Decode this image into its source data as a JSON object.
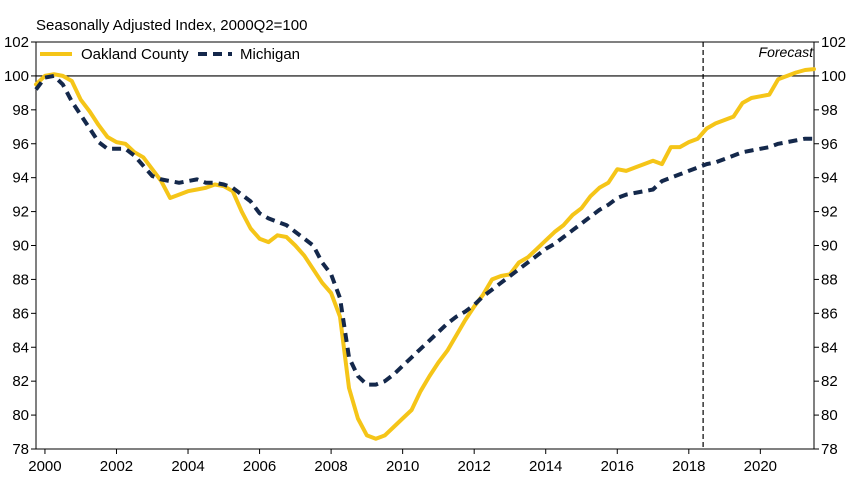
{
  "chart_data": {
    "type": "line",
    "title": "Seasonally Adjusted Index, 2000Q2=100",
    "xlabel": "",
    "ylabel": "",
    "xlim": [
      1999.75,
      2021.5
    ],
    "ylim": [
      78,
      102
    ],
    "x_ticks": [
      "2000",
      "2002",
      "2004",
      "2006",
      "2008",
      "2010",
      "2012",
      "2014",
      "2016",
      "2018",
      "2020"
    ],
    "y_ticks": [
      "78",
      "80",
      "82",
      "84",
      "86",
      "88",
      "90",
      "92",
      "94",
      "96",
      "98",
      "100",
      "102"
    ],
    "grid": false,
    "legend": "top-left",
    "reference_line_y": 100,
    "forecast_start_x": 2018.4,
    "annotation": "Forecast",
    "colors": {
      "oakland": "#F5C518",
      "michigan": "#14284B"
    },
    "series": [
      {
        "name": "Oakland County",
        "style": "solid",
        "x": [
          1999.75,
          2000.0,
          2000.25,
          2000.5,
          2000.75,
          2001.0,
          2001.25,
          2001.5,
          2001.75,
          2002.0,
          2002.25,
          2002.5,
          2002.75,
          2003.0,
          2003.25,
          2003.5,
          2003.75,
          2004.0,
          2004.25,
          2004.5,
          2004.75,
          2005.0,
          2005.25,
          2005.5,
          2005.75,
          2006.0,
          2006.25,
          2006.5,
          2006.75,
          2007.0,
          2007.25,
          2007.5,
          2007.75,
          2008.0,
          2008.25,
          2008.5,
          2008.75,
          2009.0,
          2009.25,
          2009.5,
          2009.75,
          2010.0,
          2010.25,
          2010.5,
          2010.75,
          2011.0,
          2011.25,
          2011.5,
          2011.75,
          2012.0,
          2012.25,
          2012.5,
          2012.75,
          2013.0,
          2013.25,
          2013.5,
          2013.75,
          2014.0,
          2014.25,
          2014.5,
          2014.75,
          2015.0,
          2015.25,
          2015.5,
          2015.75,
          2016.0,
          2016.25,
          2016.5,
          2016.75,
          2017.0,
          2017.25,
          2017.5,
          2017.75,
          2018.0,
          2018.25,
          2018.5,
          2018.75,
          2019.0,
          2019.25,
          2019.5,
          2019.75,
          2020.0,
          2020.25,
          2020.5,
          2020.75,
          2021.0,
          2021.25,
          2021.5
        ],
        "y": [
          99.5,
          100.0,
          100.1,
          100.0,
          99.7,
          98.6,
          97.9,
          97.1,
          96.4,
          96.1,
          96.0,
          95.5,
          95.2,
          94.5,
          93.8,
          92.8,
          93.0,
          93.2,
          93.3,
          93.4,
          93.6,
          93.5,
          93.2,
          92.0,
          91.0,
          90.4,
          90.2,
          90.6,
          90.5,
          90.0,
          89.4,
          88.6,
          87.8,
          87.2,
          85.8,
          81.6,
          79.8,
          78.8,
          78.6,
          78.8,
          79.3,
          79.8,
          80.3,
          81.4,
          82.3,
          83.1,
          83.8,
          84.7,
          85.6,
          86.4,
          87.1,
          88.0,
          88.2,
          88.3,
          89.0,
          89.3,
          89.8,
          90.3,
          90.8,
          91.2,
          91.8,
          92.2,
          92.9,
          93.4,
          93.7,
          94.5,
          94.4,
          94.6,
          94.8,
          95.0,
          94.8,
          95.8,
          95.8,
          96.1,
          96.3,
          96.9,
          97.2,
          97.4,
          97.6,
          98.4,
          98.7,
          98.8,
          98.9,
          99.8,
          100.0,
          100.2,
          100.35,
          100.4
        ]
      },
      {
        "name": "Michigan",
        "style": "dashed",
        "x": [
          1999.75,
          2000.0,
          2000.25,
          2000.5,
          2000.75,
          2001.0,
          2001.25,
          2001.5,
          2001.75,
          2002.0,
          2002.25,
          2002.5,
          2002.75,
          2003.0,
          2003.25,
          2003.5,
          2003.75,
          2004.0,
          2004.25,
          2004.5,
          2004.75,
          2005.0,
          2005.25,
          2005.5,
          2005.75,
          2006.0,
          2006.25,
          2006.5,
          2006.75,
          2007.0,
          2007.25,
          2007.5,
          2007.75,
          2008.0,
          2008.25,
          2008.5,
          2008.75,
          2009.0,
          2009.25,
          2009.5,
          2009.75,
          2010.0,
          2010.25,
          2010.5,
          2010.75,
          2011.0,
          2011.25,
          2011.5,
          2011.75,
          2012.0,
          2012.25,
          2012.5,
          2012.75,
          2013.0,
          2013.25,
          2013.5,
          2013.75,
          2014.0,
          2014.25,
          2014.5,
          2014.75,
          2015.0,
          2015.25,
          2015.5,
          2015.75,
          2016.0,
          2016.25,
          2016.5,
          2016.75,
          2017.0,
          2017.25,
          2017.5,
          2017.75,
          2018.0,
          2018.25,
          2018.5,
          2018.75,
          2019.0,
          2019.25,
          2019.5,
          2019.75,
          2020.0,
          2020.25,
          2020.5,
          2020.75,
          2021.0,
          2021.25,
          2021.5
        ],
        "y": [
          99.2,
          99.9,
          100.0,
          99.5,
          98.5,
          97.7,
          96.9,
          96.1,
          95.7,
          95.7,
          95.7,
          95.3,
          94.7,
          94.1,
          93.9,
          93.8,
          93.7,
          93.8,
          93.9,
          93.7,
          93.7,
          93.6,
          93.4,
          93.0,
          92.6,
          91.9,
          91.6,
          91.4,
          91.2,
          90.8,
          90.4,
          90.0,
          89.0,
          88.3,
          86.9,
          83.4,
          82.3,
          81.8,
          81.8,
          82.0,
          82.4,
          82.9,
          83.4,
          83.9,
          84.4,
          84.9,
          85.4,
          85.8,
          86.1,
          86.5,
          87.0,
          87.4,
          87.8,
          88.2,
          88.6,
          89.0,
          89.4,
          89.8,
          90.1,
          90.5,
          90.9,
          91.3,
          91.7,
          92.1,
          92.4,
          92.8,
          93.0,
          93.1,
          93.2,
          93.3,
          93.8,
          94.0,
          94.2,
          94.4,
          94.6,
          94.8,
          94.9,
          95.1,
          95.3,
          95.5,
          95.6,
          95.7,
          95.8,
          96.0,
          96.1,
          96.2,
          96.3,
          96.3
        ]
      }
    ]
  }
}
